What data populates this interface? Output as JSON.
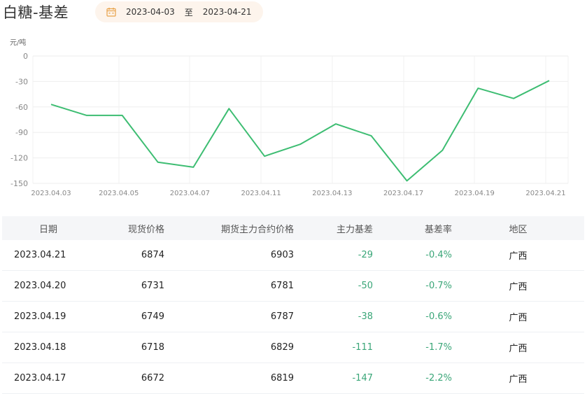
{
  "header": {
    "title": "白糖-基差",
    "date_from": "2023-04-03",
    "date_sep": "至",
    "date_to": "2023-04-21"
  },
  "chart_data": {
    "type": "line",
    "ylabel": "元/吨",
    "ylim": [
      -150,
      0
    ],
    "yticks": [
      "0",
      "-30",
      "-60",
      "-90",
      "-120",
      "-150"
    ],
    "xticks": [
      "2023.04.03",
      "2023.04.05",
      "2023.04.07",
      "2023.04.11",
      "2023.04.13",
      "2023.04.17",
      "2023.04.19",
      "2023.04.21"
    ],
    "x": [
      "2023.04.03",
      "2023.04.04",
      "2023.04.05",
      "2023.04.06",
      "2023.04.07",
      "2023.04.10",
      "2023.04.11",
      "2023.04.12",
      "2023.04.13",
      "2023.04.14",
      "2023.04.17",
      "2023.04.18",
      "2023.04.19",
      "2023.04.20",
      "2023.04.21"
    ],
    "values": [
      -57,
      -70,
      -70,
      -125,
      -131,
      -62,
      -118,
      -104,
      -80,
      -94,
      -147,
      -111,
      -38,
      -50,
      -29
    ],
    "line_color": "#3dbd72",
    "grid": true
  },
  "table": {
    "headers": [
      "日期",
      "现货价格",
      "期货主力合约价格",
      "主力基差",
      "基差率",
      "地区"
    ],
    "rows": [
      [
        "2023.04.21",
        "6874",
        "6903",
        "-29",
        "-0.4%",
        "广西"
      ],
      [
        "2023.04.20",
        "6731",
        "6781",
        "-50",
        "-0.7%",
        "广西"
      ],
      [
        "2023.04.19",
        "6749",
        "6787",
        "-38",
        "-0.6%",
        "广西"
      ],
      [
        "2023.04.18",
        "6718",
        "6829",
        "-111",
        "-1.7%",
        "广西"
      ],
      [
        "2023.04.17",
        "6672",
        "6819",
        "-147",
        "-2.2%",
        "广西"
      ]
    ]
  },
  "colors": {
    "accent_green": "#3aa678",
    "date_bg": "#fdf4ec",
    "calendar_icon": "#e8a24a"
  }
}
